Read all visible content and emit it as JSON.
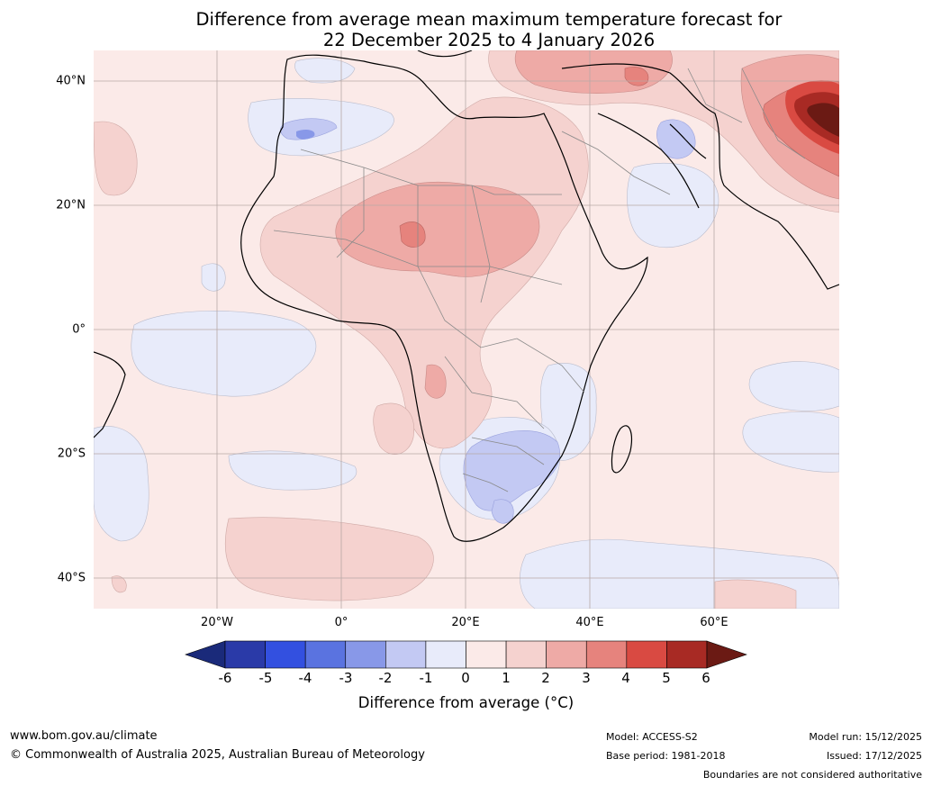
{
  "title": {
    "line1": "Difference from average mean maximum temperature forecast for",
    "line2": "22 December 2025 to 4 January 2026"
  },
  "map": {
    "region": "Africa and surrounding oceans",
    "latitude_labels": [
      "40°N",
      "20°N",
      "0°",
      "20°S",
      "40°S"
    ],
    "longitude_labels": [
      "20°W",
      "0°",
      "20°E",
      "40°E",
      "60°E"
    ]
  },
  "colorbar": {
    "label": "Difference from average (°C)",
    "ticks": [
      "-6",
      "-5",
      "-4",
      "-3",
      "-2",
      "-1",
      "0",
      "1",
      "2",
      "3",
      "4",
      "5",
      "6"
    ],
    "colors": {
      "below_-6": "#1a2a7a",
      "-6_-5": "#2a3aa8",
      "-5_-4": "#3350e0",
      "-4_-3": "#5a73e0",
      "-3_-2": "#8898e8",
      "-2_-1": "#c3c9f3",
      "-1_0": "#e8ebfa",
      "0_1": "#fbeae8",
      "1_2": "#f5d2cf",
      "2_3": "#eeaaa6",
      "3_4": "#e6837d",
      "4_5": "#d94a42",
      "5_6": "#a82a24",
      "above_6": "#6b1a14"
    }
  },
  "footer": {
    "website": "www.bom.gov.au/climate",
    "copyright": "© Commonwealth of Australia 2025, Australian Bureau of Meteorology",
    "model": "Model: ACCESS-S2",
    "base_period": "Base period: 1981-2018",
    "model_run": "Model run: 15/12/2025",
    "issued": "Issued: 17/12/2025",
    "disclaimer": "Boundaries are not considered authoritative"
  }
}
